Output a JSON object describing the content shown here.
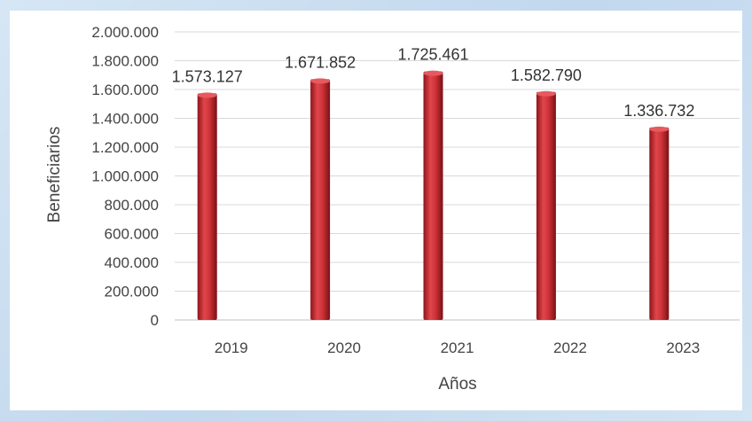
{
  "chart_data": {
    "type": "bar",
    "title": "",
    "xlabel": "Años",
    "ylabel": "Beneficiarios",
    "categories": [
      "2019",
      "2020",
      "2021",
      "2022",
      "2023"
    ],
    "values": [
      1573127,
      1671852,
      1725461,
      1582790,
      1336732
    ],
    "value_labels": [
      "1.573.127",
      "1.671.852",
      "1.725.461",
      "1.582.790",
      "1.336.732"
    ],
    "ylim": [
      0,
      2000000
    ],
    "yticks": [
      0,
      200000,
      400000,
      600000,
      800000,
      1000000,
      1200000,
      1400000,
      1600000,
      1800000,
      2000000
    ],
    "ytick_labels": [
      "0",
      "200.000",
      "400.000",
      "600.000",
      "800.000",
      "1.000.000",
      "1.200.000",
      "1.400.000",
      "1.600.000",
      "1.800.000",
      "2.000.000"
    ],
    "grid": true,
    "legend": "none",
    "bar_color": "#c8252c"
  }
}
